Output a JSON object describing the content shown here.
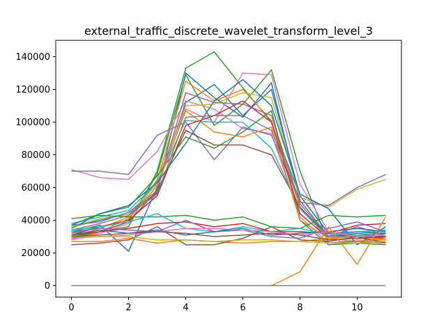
{
  "chart_data": {
    "type": "line",
    "title": "external_traffic_discrete_wavelet_transform_level_3",
    "xlabel": "",
    "ylabel": "",
    "xlim": [
      -0.55,
      11.55
    ],
    "ylim": [
      -7000,
      150000
    ],
    "x_ticks": [
      0,
      2,
      4,
      6,
      8,
      10
    ],
    "y_ticks": [
      0,
      20000,
      40000,
      60000,
      80000,
      100000,
      120000,
      140000
    ],
    "grid": false,
    "legend": "none",
    "x": [
      0,
      1,
      2,
      3,
      4,
      5,
      6,
      7,
      8,
      9,
      10,
      11
    ],
    "series": [
      {
        "color": "#2ca02c",
        "values": [
          30000,
          33000,
          36000,
          70000,
          133000,
          143000,
          121000,
          100000,
          55000,
          32000,
          33000,
          32000
        ]
      },
      {
        "color": "#2ca02c",
        "values": [
          32000,
          36000,
          40000,
          68000,
          129000,
          98000,
          111000,
          132000,
          70000,
          26000,
          27000,
          26000
        ]
      },
      {
        "color": "#1f77b4",
        "values": [
          36000,
          40000,
          44000,
          57000,
          130000,
          115000,
          103000,
          124000,
          52000,
          30000,
          32000,
          30000
        ]
      },
      {
        "color": "#1f77b4",
        "values": [
          33000,
          37000,
          21000,
          60000,
          112000,
          123000,
          104000,
          120000,
          55000,
          32000,
          33000,
          32000
        ]
      },
      {
        "color": "#e377c2",
        "values": [
          28000,
          32000,
          38000,
          65000,
          108000,
          100000,
          130000,
          129000,
          62000,
          33000,
          35000,
          33000
        ]
      },
      {
        "color": "#ff7f0e",
        "values": [
          30000,
          35000,
          42000,
          64000,
          125000,
          113000,
          120000,
          101000,
          48000,
          28000,
          29000,
          27000
        ]
      },
      {
        "color": "#e377c2",
        "values": [
          71000,
          66000,
          65000,
          82000,
          113000,
          108000,
          96000,
          93000,
          42000,
          26000,
          28000,
          26000
        ]
      },
      {
        "color": "#9467bd",
        "values": [
          70000,
          70000,
          68000,
          92000,
          100000,
          77000,
          97000,
          92000,
          51000,
          49000,
          60000,
          68000
        ]
      },
      {
        "color": "#bcbd22",
        "values": [
          36000,
          41000,
          44000,
          62000,
          110000,
          111000,
          118000,
          115000,
          54000,
          48000,
          59000,
          65000
        ]
      },
      {
        "color": "#9467bd",
        "values": [
          37000,
          39000,
          45000,
          58000,
          118000,
          112000,
          111000,
          104000,
          50000,
          30000,
          36000,
          31000
        ]
      },
      {
        "color": "#8c564b",
        "values": [
          29000,
          33000,
          39000,
          58000,
          95000,
          86000,
          86000,
          80000,
          48000,
          30000,
          31000,
          30000
        ]
      },
      {
        "color": "#2ca02c",
        "values": [
          35000,
          44000,
          48000,
          67000,
          91000,
          84000,
          94000,
          107000,
          40000,
          25000,
          26000,
          25000
        ]
      },
      {
        "color": "#17becf",
        "values": [
          38000,
          42000,
          46000,
          63000,
          101000,
          100000,
          100000,
          84000,
          47000,
          29000,
          31000,
          29000
        ]
      },
      {
        "color": "#d62728",
        "values": [
          31000,
          36000,
          40000,
          55000,
          98000,
          104000,
          113000,
          100000,
          44000,
          29000,
          30000,
          29000
        ]
      },
      {
        "color": "#ff7f0e",
        "values": [
          28000,
          33000,
          41000,
          61000,
          107000,
          94000,
          91000,
          97000,
          40000,
          29000,
          30000,
          28000
        ]
      },
      {
        "color": "#1f77b4",
        "values": [
          37000,
          44000,
          49000,
          63000,
          87000,
          113000,
          126000,
          110000,
          56000,
          47000,
          25000,
          36000
        ]
      },
      {
        "color": "#7f7f7f",
        "values": [
          34000,
          38000,
          43000,
          56000,
          103000,
          104000,
          104000,
          95000,
          52000,
          30000,
          33000,
          31000
        ]
      },
      {
        "color": "#2ca02c",
        "values": [
          41000,
          43000,
          42000,
          42000,
          43000,
          40000,
          42000,
          36000,
          35000,
          43000,
          42000,
          43000
        ]
      },
      {
        "color": "#17becf",
        "values": [
          34000,
          36000,
          39000,
          44000,
          35000,
          33000,
          36000,
          33000,
          35000,
          31000,
          33000,
          34000
        ]
      },
      {
        "color": "#d62728",
        "values": [
          31000,
          33000,
          35000,
          38000,
          39000,
          36000,
          38000,
          33000,
          33000,
          32000,
          37000,
          38000
        ]
      },
      {
        "color": "#ff7f0e",
        "values": [
          27000,
          27000,
          29000,
          26000,
          28000,
          27000,
          26000,
          27000,
          27000,
          29000,
          27000,
          29000
        ]
      },
      {
        "color": "#8c564b",
        "values": [
          25000,
          26000,
          28000,
          36000,
          25000,
          25000,
          29000,
          36000,
          28000,
          27000,
          30000,
          26000
        ]
      },
      {
        "color": "#9467bd",
        "values": [
          33000,
          35000,
          34000,
          33000,
          40000,
          33000,
          34000,
          30000,
          29000,
          35000,
          39000,
          33000
        ]
      },
      {
        "color": "#1f77b4",
        "values": [
          31000,
          34000,
          32000,
          34000,
          31000,
          33000,
          35000,
          31000,
          32000,
          33000,
          35000,
          33000
        ]
      },
      {
        "color": "#e377c2",
        "values": [
          29000,
          30000,
          31000,
          33000,
          35000,
          35000,
          34000,
          33000,
          31000,
          33000,
          30000,
          31000
        ]
      },
      {
        "color": "#bcbd22",
        "values": [
          30000,
          30000,
          30000,
          28000,
          28000,
          27000,
          28000,
          28000,
          27000,
          26000,
          26000,
          27000
        ]
      },
      {
        "color": "#8c564b",
        "values": [
          30000,
          31000,
          32000,
          33000,
          32000,
          30000,
          31000,
          32000,
          31000,
          28000,
          29000,
          30000
        ]
      },
      {
        "color": "#ff7f0e",
        "values": [
          null,
          null,
          null,
          null,
          null,
          null,
          null,
          0,
          8500,
          36000,
          13000,
          42000
        ]
      },
      {
        "color": "#7f7f7f",
        "values": [
          0,
          0,
          0,
          0,
          0,
          0,
          0,
          0,
          0,
          0,
          0,
          0
        ]
      }
    ]
  }
}
